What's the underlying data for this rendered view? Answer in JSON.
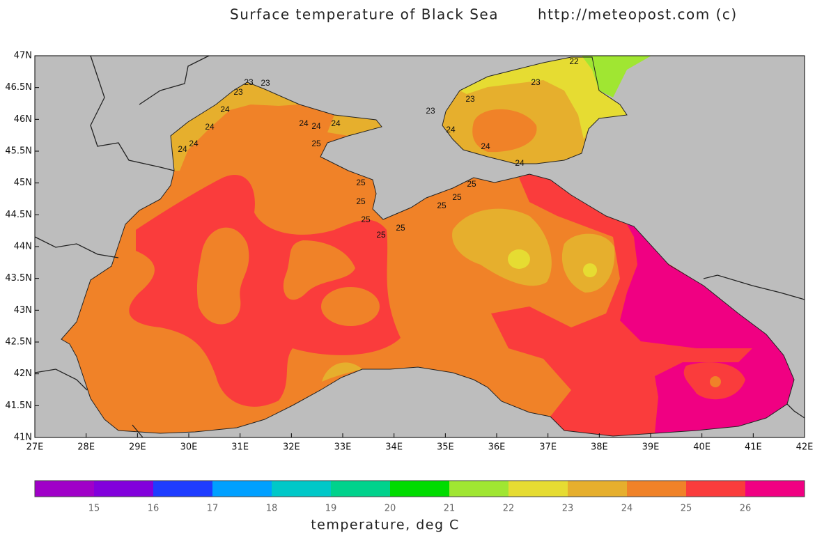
{
  "title": "Surface temperature of Black Sea",
  "source": "http://meteopost.com (c)",
  "map": {
    "lat_ticks": [
      "47N",
      "46.5N",
      "46N",
      "45.5N",
      "45N",
      "44.5N",
      "44N",
      "43.5N",
      "43N",
      "42.5N",
      "42N",
      "41.5N",
      "41N"
    ],
    "lon_ticks": [
      "27E",
      "28E",
      "29E",
      "30E",
      "31E",
      "32E",
      "33E",
      "34E",
      "35E",
      "36E",
      "37E",
      "38E",
      "39E",
      "40E",
      "41E",
      "42E"
    ],
    "contour_labels": [
      22,
      23,
      23,
      23,
      23,
      23,
      23,
      24,
      24,
      24,
      24,
      24,
      24,
      24,
      24,
      24,
      24,
      25,
      25,
      25,
      25,
      25,
      25,
      25,
      25,
      25
    ]
  },
  "colorbar": {
    "colors": [
      "#a000c8",
      "#8200dc",
      "#1e3cff",
      "#00a0ff",
      "#00c8c8",
      "#00d28c",
      "#00dc00",
      "#a0e632",
      "#e6dc32",
      "#e6af2d",
      "#f08228",
      "#fa3c3c",
      "#f00082"
    ],
    "ticks": [
      15,
      16,
      17,
      18,
      19,
      20,
      21,
      22,
      23,
      24,
      25,
      26
    ],
    "label": "temperature, deg C"
  }
}
